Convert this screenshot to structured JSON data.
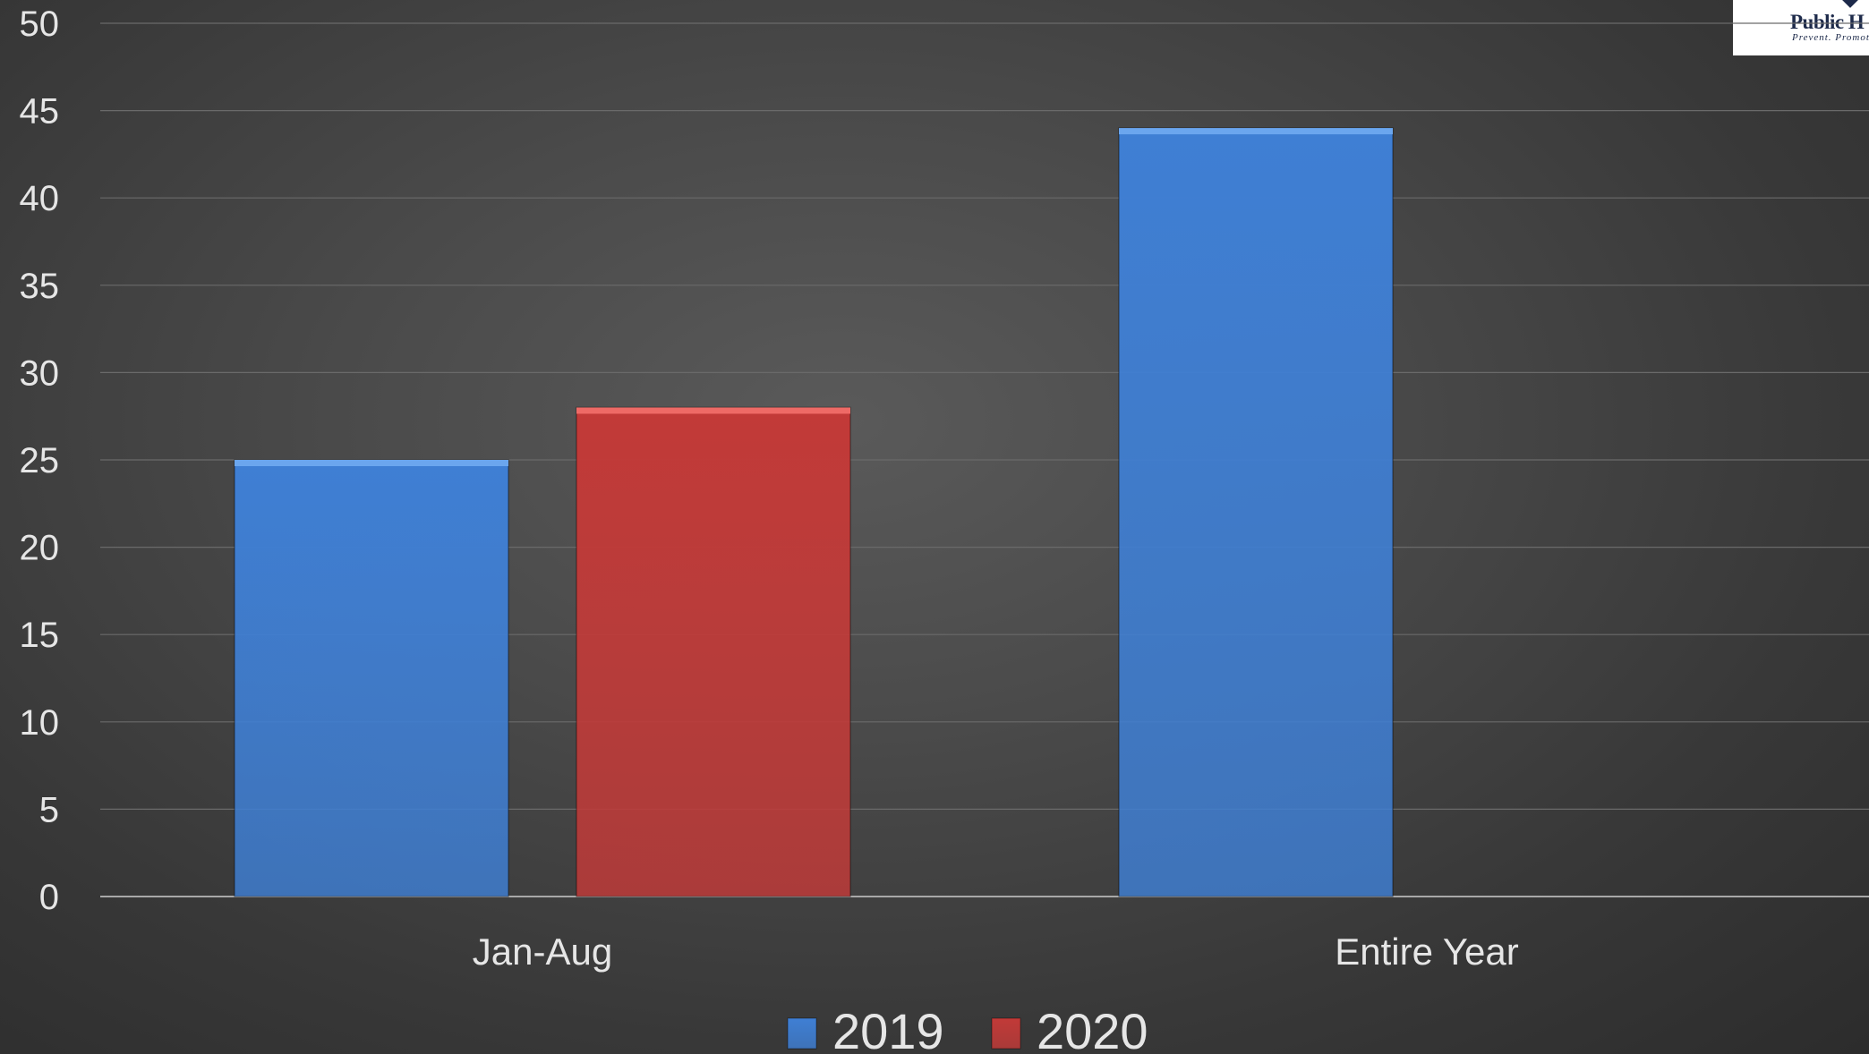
{
  "logo": {
    "title": "Public H",
    "subtitle": "Prevent. Promot"
  },
  "chart_data": {
    "type": "bar",
    "categories": [
      "Jan-Aug",
      "Entire Year"
    ],
    "series": [
      {
        "name": "2019",
        "values": [
          25,
          44
        ],
        "color": "#3f7fd4",
        "edge": "#6ba6ee"
      },
      {
        "name": "2020",
        "values": [
          28,
          null
        ],
        "color": "#c23a38",
        "edge": "#ee6a66"
      }
    ],
    "ylim": [
      0,
      50
    ],
    "yticks": [
      0,
      5,
      10,
      15,
      20,
      25,
      30,
      35,
      40,
      45,
      50
    ],
    "grid": true,
    "legend": "bottom"
  }
}
